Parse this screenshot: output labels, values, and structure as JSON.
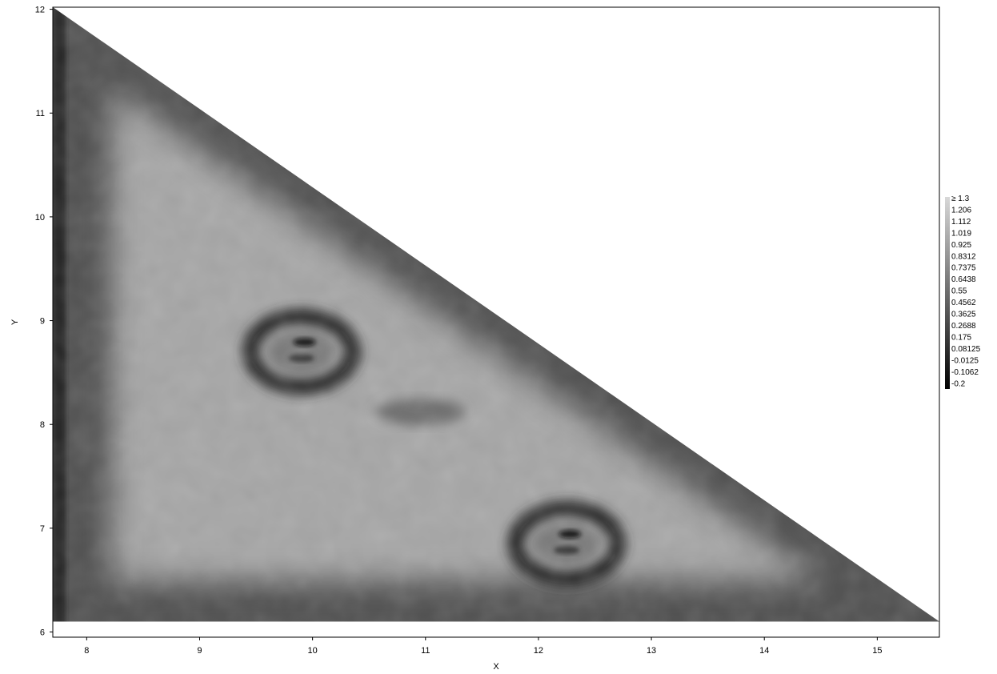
{
  "chart_data": {
    "type": "heatmap",
    "title": "",
    "xlabel": "X",
    "ylabel": "Y",
    "xlim": [
      7.7,
      15.55
    ],
    "ylim": [
      5.95,
      12.02
    ],
    "x_ticks": [
      8,
      9,
      10,
      11,
      12,
      13,
      14,
      15
    ],
    "y_ticks": [
      6,
      7,
      8,
      9,
      10,
      11,
      12
    ],
    "grid": false,
    "colormap": "grayscale",
    "color_scale": {
      "min": -0.2,
      "max": 1.3,
      "labels": [
        "≥ 1.3",
        "1.206",
        "1.112",
        "1.019",
        "0.925",
        "0.8312",
        "0.7375",
        "0.6438",
        "0.55",
        "0.4562",
        "0.3625",
        "0.2688",
        "0.175",
        "0.08125",
        "-0.0125",
        "-0.1062",
        "-0.2"
      ]
    },
    "legend_placement": "right",
    "region": {
      "shape": "triangle",
      "vertices": [
        [
          7.7,
          12.02
        ],
        [
          15.55,
          6.1
        ],
        [
          7.7,
          6.1
        ]
      ]
    },
    "features": [
      {
        "type": "ring",
        "center": [
          9.9,
          8.7
        ],
        "radius": 0.55,
        "value": 0.3
      },
      {
        "type": "ring",
        "center": [
          12.25,
          6.85
        ],
        "radius": 0.55,
        "value": 0.3
      },
      {
        "type": "blob",
        "center": [
          10.95,
          8.12
        ],
        "size": [
          0.8,
          0.25
        ],
        "value": 0.55
      }
    ],
    "background_value": 0.95,
    "border_value": 0.35
  }
}
